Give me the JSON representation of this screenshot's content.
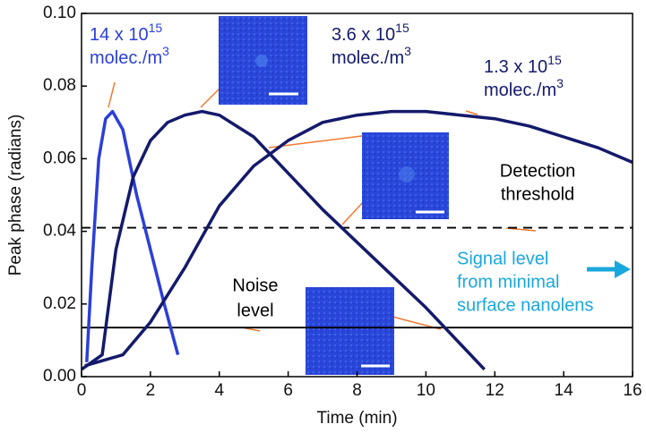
{
  "chart_data": {
    "type": "line",
    "x_label": "Time (min)",
    "y_label": "Peak phase (radians)",
    "xlim": [
      0,
      16
    ],
    "ylim": [
      0,
      0.1
    ],
    "xticks": [
      0,
      2,
      4,
      6,
      8,
      10,
      12,
      14,
      16
    ],
    "yticks": [
      {
        "value": 0,
        "label": "0.00"
      },
      {
        "value": 0.02,
        "label": "0.02"
      },
      {
        "value": 0.04,
        "label": "0.04"
      },
      {
        "value": 0.06,
        "label": "0.06"
      },
      {
        "value": 0.08,
        "label": "0.08"
      },
      {
        "value": 0.1,
        "label": "0.10"
      }
    ],
    "series": [
      {
        "color": "#2b3fd8",
        "x": [
          0.15,
          0.3,
          0.5,
          0.7,
          0.9,
          1.2,
          1.6,
          2.0,
          2.4,
          2.8
        ],
        "values": [
          0.004,
          0.03,
          0.06,
          0.071,
          0.073,
          0.068,
          0.05,
          0.035,
          0.02,
          0.006
        ]
      },
      {
        "color": "#141a6b",
        "x": [
          0,
          0.6,
          1.0,
          1.5,
          2.0,
          2.5,
          3.0,
          3.5,
          4.0,
          5.0,
          6.0,
          7.0,
          8.0,
          9.0,
          10.0,
          11.0,
          11.7
        ],
        "values": [
          0.002,
          0.006,
          0.035,
          0.055,
          0.065,
          0.07,
          0.072,
          0.073,
          0.072,
          0.066,
          0.056,
          0.046,
          0.037,
          0.028,
          0.019,
          0.009,
          0.002
        ]
      },
      {
        "color": "#141a6b",
        "x": [
          0.1,
          1.2,
          2,
          3,
          4,
          5,
          6,
          7,
          8,
          9,
          10,
          11,
          12,
          13,
          14,
          15,
          16
        ],
        "values": [
          0.003,
          0.006,
          0.015,
          0.03,
          0.047,
          0.058,
          0.065,
          0.07,
          0.072,
          0.073,
          0.073,
          0.072,
          0.071,
          0.069,
          0.066,
          0.063,
          0.059
        ]
      }
    ],
    "hlines": [
      {
        "value": 0.041,
        "style": "dashed",
        "label": [
          "Detection",
          "threshold"
        ]
      },
      {
        "value": 0.0135,
        "style": "solid",
        "label": [
          "Noise",
          "level"
        ]
      }
    ],
    "annotations": [
      {
        "base": "14 x 10",
        "exp": "15",
        "unit": "molec./m",
        "unit_exp": "3"
      },
      {
        "base": "3.6 x 10",
        "exp": "15",
        "unit": "molec./m",
        "unit_exp": "3"
      },
      {
        "base": "1.3 x 10",
        "exp": "15",
        "unit": "molec./m",
        "unit_exp": "3"
      }
    ],
    "signal_note": {
      "lines": [
        "Signal level",
        "from minimal",
        "surface nanolens"
      ],
      "color": "#1aa7dd"
    }
  }
}
